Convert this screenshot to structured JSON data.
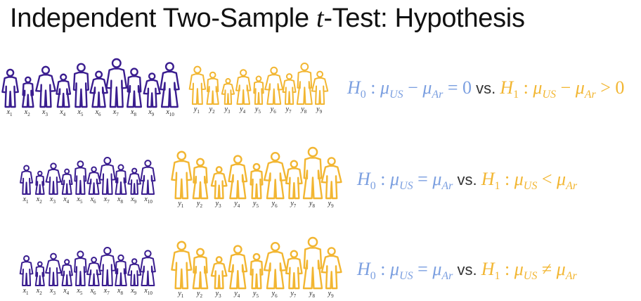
{
  "title": {
    "prefix": "Independent Two-Sample ",
    "t": "t",
    "suffix": "-Test: Hypothesis"
  },
  "colors": {
    "group_us": "#3a1d8f",
    "group_ar": "#f2b632",
    "h0": "#7b9fe0",
    "h1": "#f2b632"
  },
  "rows": [
    {
      "x_labels": [
        "x1",
        "x2",
        "x3",
        "x4",
        "x5",
        "x6",
        "x7",
        "x8",
        "x9",
        "x10"
      ],
      "y_labels": [
        "y1",
        "y2",
        "y3",
        "y4",
        "y5",
        "y6",
        "y7",
        "y8",
        "y9"
      ],
      "h0": {
        "H": "H",
        "sub0": "0",
        "colon": " : ",
        "mu1": "μ",
        "s1": "US",
        "op": " − ",
        "mu2": "μ",
        "s2": "Ar",
        "rhs": " = 0"
      },
      "vs": " vs. ",
      "h1": {
        "H": "H",
        "sub1": "1",
        "colon": " : ",
        "mu1": "μ",
        "s1": "US",
        "op": " − ",
        "mu2": "μ",
        "s2": "Ar",
        "rhs": " > 0"
      }
    },
    {
      "x_labels": [
        "x1",
        "x2",
        "x3",
        "x4",
        "x5",
        "x6",
        "x7",
        "x8",
        "x9",
        "x10"
      ],
      "y_labels": [
        "y1",
        "y2",
        "y3",
        "y4",
        "y5",
        "y6",
        "y7",
        "y8",
        "y9"
      ],
      "h0": {
        "H": "H",
        "sub0": "0",
        "colon": " : ",
        "mu1": "μ",
        "s1": "US",
        "op": " = ",
        "mu2": "μ",
        "s2": "Ar"
      },
      "vs": " vs. ",
      "h1": {
        "H": "H",
        "sub1": "1",
        "colon": " : ",
        "mu1": "μ",
        "s1": "US",
        "op": " < ",
        "mu2": "μ",
        "s2": "Ar"
      }
    },
    {
      "x_labels": [
        "x1",
        "x2",
        "x3",
        "x4",
        "x5",
        "x6",
        "x7",
        "x8",
        "x9",
        "x10"
      ],
      "y_labels": [
        "y1",
        "y2",
        "y3",
        "y4",
        "y5",
        "y6",
        "y7",
        "y8",
        "y9"
      ],
      "h0": {
        "H": "H",
        "sub0": "0",
        "colon": " : ",
        "mu1": "μ",
        "s1": "US",
        "op": " = ",
        "mu2": "μ",
        "s2": "Ar"
      },
      "vs": " vs. ",
      "h1": {
        "H": "H",
        "sub1": "1",
        "colon": " : ",
        "mu1": "μ",
        "s1": "US",
        "op": " ≠ ",
        "mu2": "μ",
        "s2": "Ar"
      }
    }
  ]
}
